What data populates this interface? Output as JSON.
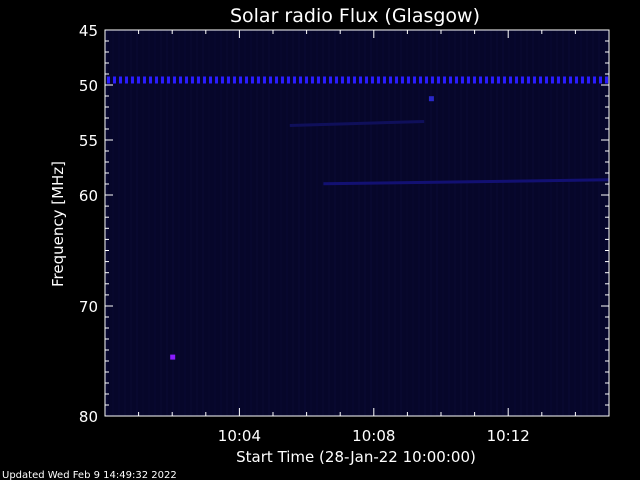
{
  "chart_data": {
    "type": "heatmap",
    "title": "Solar radio Flux (Glasgow)",
    "xlabel": "Start Time (28-Jan-22 10:00:00)",
    "ylabel": "Frequency [MHz]",
    "footer": "Updated Wed Feb  9 14:49:32 2022",
    "x_range_minutes": [
      0,
      15
    ],
    "x_ticks": [
      {
        "minutes": 4,
        "label": "10:04"
      },
      {
        "minutes": 8,
        "label": "10:08"
      },
      {
        "minutes": 12,
        "label": "10:12"
      }
    ],
    "y_range_mhz": [
      45,
      80
    ],
    "y_ticks": [
      {
        "mhz": 45,
        "label": "45"
      },
      {
        "mhz": 50,
        "label": "50"
      },
      {
        "mhz": 55,
        "label": "55"
      },
      {
        "mhz": 60,
        "label": "60"
      },
      {
        "mhz": 70,
        "label": "70"
      },
      {
        "mhz": 80,
        "label": "80"
      }
    ],
    "features": [
      {
        "kind": "persistent-band",
        "mhz": 49.5,
        "from_min": 0,
        "to_min": 15,
        "color": "#2a1cff"
      },
      {
        "kind": "faint-drift",
        "mhz": 58.8,
        "from_min": 6.5,
        "to_min": 15,
        "color": "#14127a"
      },
      {
        "kind": "faint-drift",
        "mhz": 53.5,
        "from_min": 5.5,
        "to_min": 9.5,
        "color": "#101060"
      },
      {
        "kind": "spot",
        "mhz": 51.2,
        "at_min": 9.7,
        "color": "#2a28c8"
      },
      {
        "kind": "spot",
        "mhz": 74.6,
        "at_min": 2.0,
        "color": "#8a1cff"
      }
    ],
    "colors": {
      "background": "#000000",
      "plot_bg": "#06062a",
      "axis": "#ffffff"
    }
  }
}
